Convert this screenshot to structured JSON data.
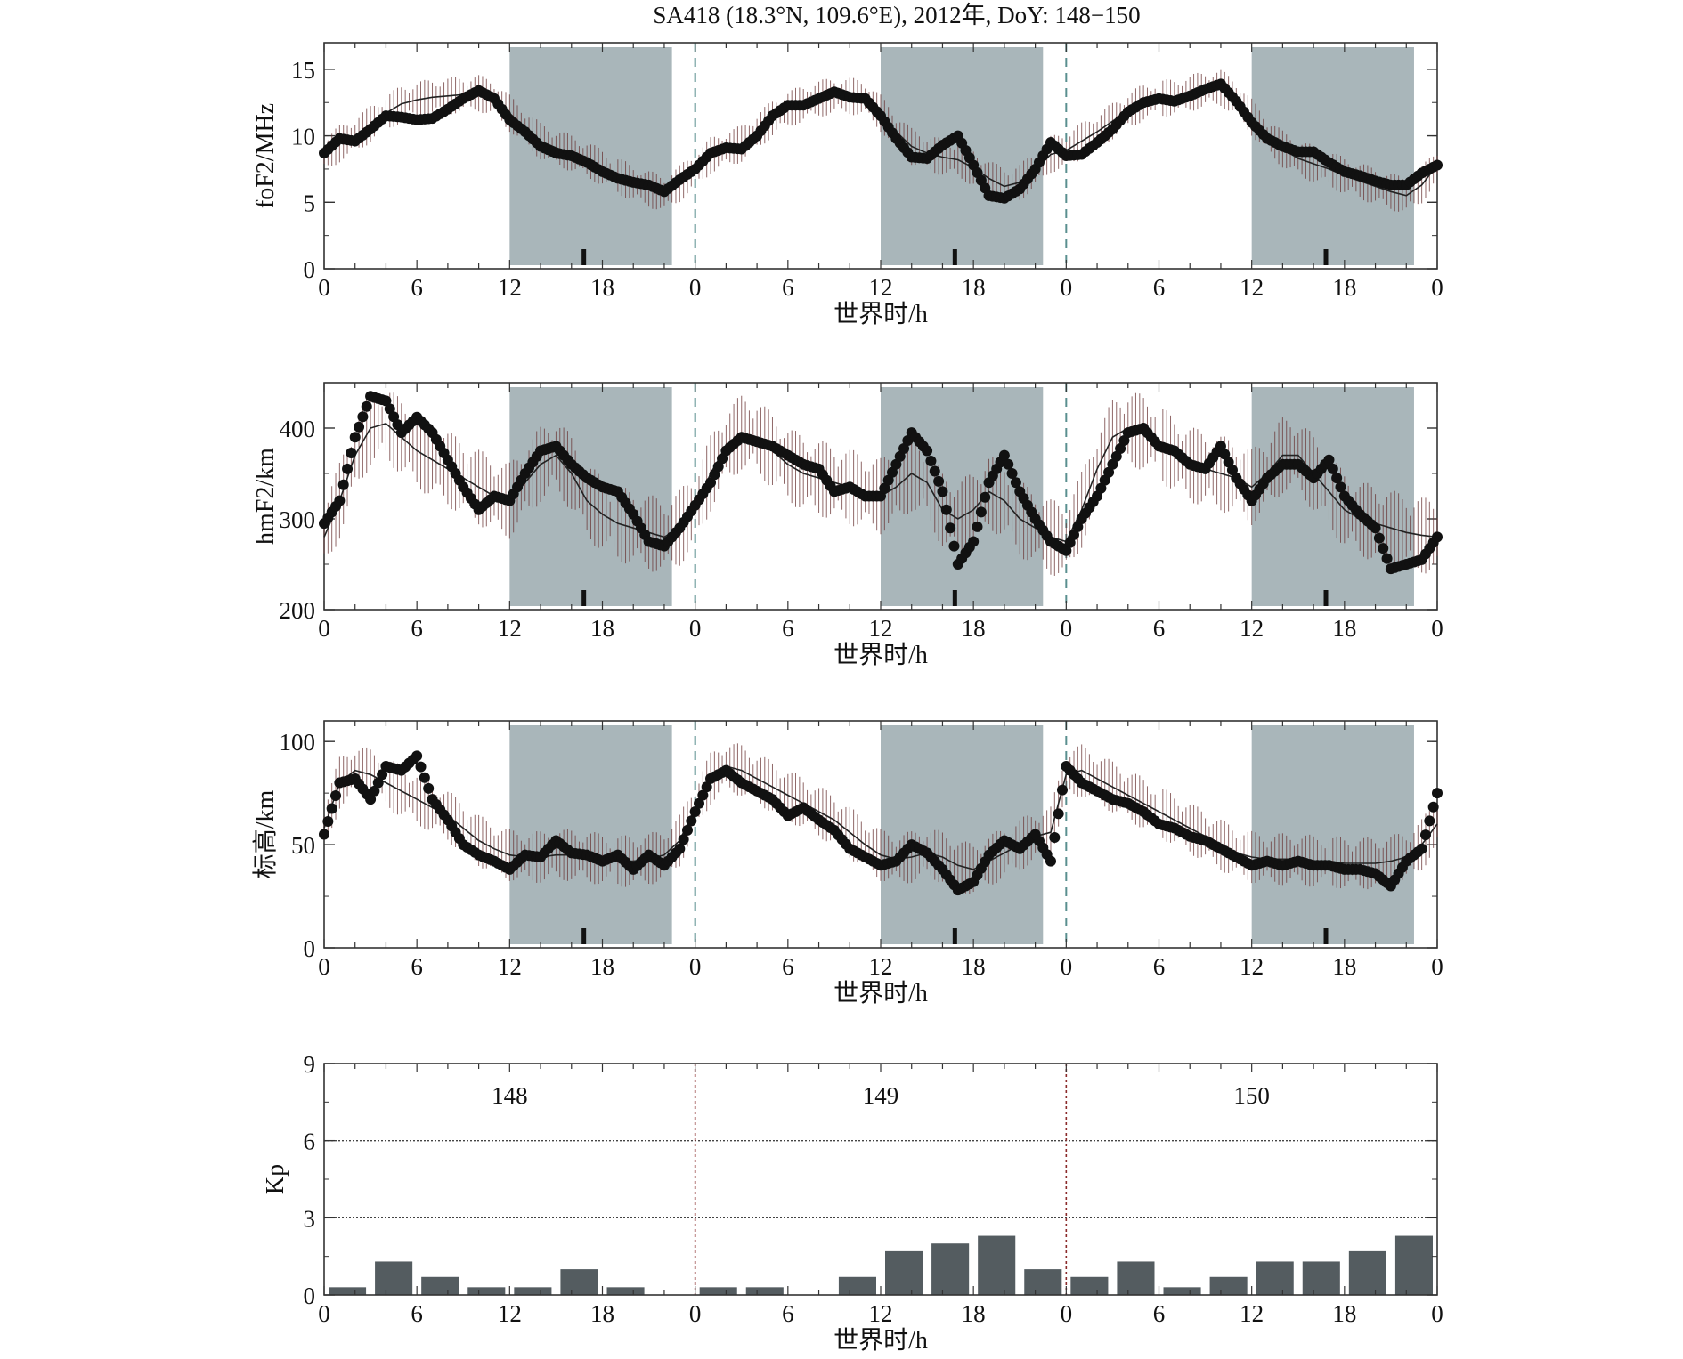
{
  "title": "SA418 (18.3°N, 109.6°E), 2012年, DoY: 148−150",
  "colors": {
    "night_shade": "#a9b6ba",
    "kp_bar": "#545c60",
    "marker": "#111111",
    "median_line": "#222222",
    "errorbar": "#6a3535",
    "day_divider": "#5a8f8f",
    "kp_divider": "#8a2a2a"
  },
  "x_tick_labels": [
    "0",
    "6",
    "12",
    "18",
    "0",
    "6",
    "12",
    "18",
    "0",
    "6",
    "12",
    "18",
    "0"
  ],
  "x_label": "世界时/h",
  "night_intervals_h": [
    [
      12,
      22.5
    ],
    [
      36,
      46.5
    ],
    [
      60,
      70.5
    ]
  ],
  "panels": [
    {
      "id": "fof2",
      "ylabel": "foF2/MHz",
      "ylim": [
        0,
        17
      ],
      "yticks": [
        "0",
        "5",
        "10",
        "15"
      ],
      "ytick_values": [
        0,
        5,
        10,
        15
      ],
      "obs_x": [
        0,
        1,
        2,
        3,
        4,
        5,
        6,
        7,
        8,
        9,
        10,
        11,
        12,
        13,
        14,
        15,
        16,
        17,
        18,
        19,
        20,
        21,
        22,
        23,
        24,
        25,
        26,
        27,
        28,
        29,
        30,
        31,
        32,
        33,
        34,
        35,
        36,
        37,
        38,
        39,
        40,
        41,
        42,
        43,
        44,
        45,
        46,
        47,
        48,
        49,
        50,
        51,
        52,
        53,
        54,
        55,
        56,
        57,
        58,
        59,
        60,
        61,
        62,
        63,
        64,
        65,
        66,
        67,
        68,
        69,
        70,
        71,
        72
      ],
      "obs_y": [
        8.7,
        9.8,
        9.6,
        10.5,
        11.5,
        11.4,
        11.2,
        11.3,
        12.0,
        12.8,
        13.4,
        12.8,
        11.2,
        10.3,
        9.2,
        8.7,
        8.5,
        8.0,
        7.3,
        6.8,
        6.5,
        6.3,
        5.8,
        6.7,
        7.5,
        8.7,
        9.1,
        9.0,
        10.0,
        11.5,
        12.3,
        12.3,
        12.8,
        13.3,
        12.9,
        12.8,
        11.5,
        9.8,
        8.4,
        8.3,
        9.3,
        10.0,
        7.8,
        5.5,
        5.3,
        6.0,
        7.5,
        9.5,
        8.5,
        8.6,
        9.5,
        10.5,
        11.8,
        12.5,
        12.8,
        12.6,
        13.0,
        13.5,
        13.9,
        12.6,
        11.0,
        9.8,
        9.2,
        8.8,
        8.8,
        8.0,
        7.3,
        7.0,
        6.6,
        6.3,
        6.3,
        7.2,
        7.8
      ],
      "median_x": [
        0,
        1,
        2,
        3,
        4,
        5,
        6,
        7,
        8,
        9,
        10,
        11,
        12,
        13,
        14,
        15,
        16,
        17,
        18,
        19,
        20,
        21,
        22,
        23,
        24,
        25,
        26,
        27,
        28,
        29,
        30,
        31,
        32,
        33,
        34,
        35,
        36,
        37,
        38,
        39,
        40,
        41,
        42,
        43,
        44,
        45,
        46,
        47,
        48,
        49,
        50,
        51,
        52,
        53,
        54,
        55,
        56,
        57,
        58,
        59,
        60,
        61,
        62,
        63,
        64,
        65,
        66,
        67,
        68,
        69,
        70,
        71,
        72
      ],
      "median_y": [
        8.5,
        9.4,
        10.0,
        10.9,
        11.7,
        12.4,
        12.7,
        12.9,
        13.0,
        13.1,
        13.2,
        12.8,
        11.7,
        10.6,
        9.6,
        9.1,
        8.7,
        8.2,
        7.6,
        7.0,
        6.4,
        6.0,
        5.6,
        6.4,
        7.4,
        8.5,
        9.0,
        9.4,
        10.3,
        11.3,
        12.0,
        12.4,
        12.8,
        13.0,
        13.0,
        12.8,
        11.7,
        10.3,
        9.2,
        8.7,
        8.4,
        8.2,
        7.6,
        6.8,
        6.2,
        6.5,
        7.4,
        8.6,
        8.9,
        9.6,
        10.3,
        11.1,
        11.9,
        12.5,
        12.8,
        12.9,
        13.2,
        13.5,
        13.6,
        12.8,
        11.4,
        10.0,
        9.0,
        8.3,
        7.9,
        7.5,
        7.0,
        6.6,
        6.2,
        5.8,
        5.5,
        6.3,
        7.8
      ],
      "errorbar_halfwidth": 1.0
    },
    {
      "id": "hmf2",
      "ylabel": "hmF2/km",
      "ylim": [
        200,
        450
      ],
      "yticks": [
        "200",
        "300",
        "400"
      ],
      "ytick_values": [
        200,
        300,
        400
      ],
      "obs_x": [
        0,
        1,
        2,
        3,
        4,
        5,
        6,
        7,
        8,
        9,
        10,
        11,
        12,
        13,
        14,
        15,
        16,
        17,
        18,
        19,
        20,
        21,
        22,
        23,
        24,
        25,
        26,
        27,
        28,
        29,
        30,
        31,
        32,
        33,
        34,
        35,
        36,
        37,
        38,
        39,
        40,
        41,
        42,
        43,
        44,
        45,
        46,
        47,
        48,
        49,
        50,
        51,
        52,
        53,
        54,
        55,
        56,
        57,
        58,
        59,
        60,
        61,
        62,
        63,
        64,
        65,
        66,
        67,
        68,
        69,
        70,
        71,
        72
      ],
      "obs_y": [
        295,
        320,
        390,
        435,
        430,
        395,
        412,
        395,
        365,
        335,
        310,
        325,
        320,
        350,
        375,
        380,
        360,
        345,
        335,
        330,
        305,
        275,
        270,
        290,
        315,
        340,
        375,
        390,
        385,
        380,
        370,
        360,
        355,
        330,
        335,
        325,
        325,
        360,
        395,
        375,
        330,
        250,
        275,
        340,
        370,
        330,
        300,
        275,
        265,
        300,
        325,
        360,
        395,
        400,
        380,
        375,
        360,
        355,
        380,
        345,
        320,
        345,
        360,
        360,
        345,
        365,
        325,
        305,
        290,
        245,
        250,
        255,
        280
      ],
      "median_x": [
        0,
        1,
        2,
        3,
        4,
        5,
        6,
        7,
        8,
        9,
        10,
        11,
        12,
        13,
        14,
        15,
        16,
        17,
        18,
        19,
        20,
        21,
        22,
        23,
        24,
        25,
        26,
        27,
        28,
        29,
        30,
        31,
        32,
        33,
        34,
        35,
        36,
        37,
        38,
        39,
        40,
        41,
        42,
        43,
        44,
        45,
        46,
        47,
        48,
        49,
        50,
        51,
        52,
        53,
        54,
        55,
        56,
        57,
        58,
        59,
        60,
        61,
        62,
        63,
        64,
        65,
        66,
        67,
        68,
        69,
        70,
        71,
        72
      ],
      "median_y": [
        280,
        320,
        370,
        400,
        405,
        390,
        375,
        365,
        355,
        345,
        335,
        325,
        320,
        340,
        360,
        370,
        350,
        320,
        305,
        295,
        290,
        285,
        280,
        290,
        310,
        350,
        380,
        395,
        390,
        375,
        360,
        350,
        345,
        340,
        335,
        330,
        325,
        335,
        350,
        340,
        310,
        300,
        310,
        330,
        320,
        300,
        290,
        280,
        275,
        310,
        355,
        390,
        400,
        395,
        385,
        370,
        360,
        355,
        350,
        345,
        335,
        350,
        370,
        370,
        350,
        330,
        310,
        300,
        295,
        290,
        285,
        282,
        280
      ],
      "errorbar_halfwidth": 30
    },
    {
      "id": "scale",
      "ylabel": "标高/km",
      "ylim": [
        0,
        110
      ],
      "yticks": [
        "0",
        "50",
        "100"
      ],
      "ytick_values": [
        0,
        50,
        100
      ],
      "obs_x": [
        0,
        1,
        2,
        3,
        4,
        5,
        6,
        7,
        8,
        9,
        10,
        11,
        12,
        13,
        14,
        15,
        16,
        17,
        18,
        19,
        20,
        21,
        22,
        23,
        24,
        25,
        26,
        27,
        28,
        29,
        30,
        31,
        32,
        33,
        34,
        35,
        36,
        37,
        38,
        39,
        40,
        41,
        42,
        43,
        44,
        45,
        46,
        47,
        48,
        49,
        50,
        51,
        52,
        53,
        54,
        55,
        56,
        57,
        58,
        59,
        60,
        61,
        62,
        63,
        64,
        65,
        66,
        67,
        68,
        69,
        70,
        71,
        72
      ],
      "obs_y": [
        55,
        80,
        82,
        72,
        88,
        86,
        93,
        72,
        62,
        50,
        45,
        42,
        38,
        45,
        44,
        52,
        46,
        45,
        42,
        45,
        38,
        45,
        40,
        48,
        66,
        82,
        86,
        80,
        76,
        72,
        64,
        68,
        62,
        57,
        48,
        44,
        40,
        42,
        50,
        46,
        38,
        28,
        32,
        45,
        52,
        48,
        55,
        42,
        88,
        80,
        76,
        72,
        70,
        66,
        60,
        58,
        54,
        52,
        48,
        44,
        40,
        42,
        40,
        42,
        40,
        40,
        38,
        38,
        36,
        30,
        42,
        48,
        75
      ],
      "median_x": [
        0,
        1,
        2,
        3,
        4,
        5,
        6,
        7,
        8,
        9,
        10,
        11,
        12,
        13,
        14,
        15,
        16,
        17,
        18,
        19,
        20,
        21,
        22,
        23,
        24,
        25,
        26,
        27,
        28,
        29,
        30,
        31,
        32,
        33,
        34,
        35,
        36,
        37,
        38,
        39,
        40,
        41,
        42,
        43,
        44,
        45,
        46,
        47,
        48,
        49,
        50,
        51,
        52,
        53,
        54,
        55,
        56,
        57,
        58,
        59,
        60,
        61,
        62,
        63,
        64,
        65,
        66,
        67,
        68,
        69,
        70,
        71,
        72
      ],
      "median_y": [
        58,
        80,
        86,
        84,
        80,
        76,
        72,
        68,
        64,
        58,
        52,
        48,
        45,
        44,
        44,
        45,
        45,
        44,
        43,
        42,
        42,
        43,
        45,
        52,
        68,
        82,
        88,
        86,
        82,
        78,
        74,
        70,
        66,
        62,
        56,
        50,
        45,
        43,
        44,
        46,
        44,
        40,
        38,
        42,
        46,
        50,
        54,
        56,
        84,
        86,
        82,
        78,
        74,
        70,
        66,
        62,
        58,
        54,
        50,
        46,
        44,
        43,
        43,
        43,
        42,
        42,
        41,
        41,
        41,
        42,
        44,
        50,
        60
      ],
      "errorbar_halfwidth": 9
    }
  ],
  "tick_marker_hours": [
    16.8,
    40.8,
    64.8
  ],
  "kp_panel": {
    "ylabel": "Kp",
    "ylim": [
      0,
      9
    ],
    "yticks": [
      "0",
      "3",
      "6",
      "9"
    ],
    "ytick_values": [
      0,
      3,
      6,
      9
    ],
    "hlines": [
      3,
      6
    ],
    "day_labels": [
      "148",
      "149",
      "150"
    ],
    "chart_data": {
      "type": "bar",
      "interval_h": 3,
      "values": [
        0.3,
        1.3,
        0.7,
        0.3,
        0.3,
        1.0,
        0.3,
        0.0,
        0.3,
        0.3,
        0.0,
        0.7,
        1.7,
        2.0,
        2.3,
        1.0,
        0.7,
        1.3,
        0.3,
        0.7,
        1.3,
        1.3,
        1.7,
        2.3
      ]
    }
  }
}
